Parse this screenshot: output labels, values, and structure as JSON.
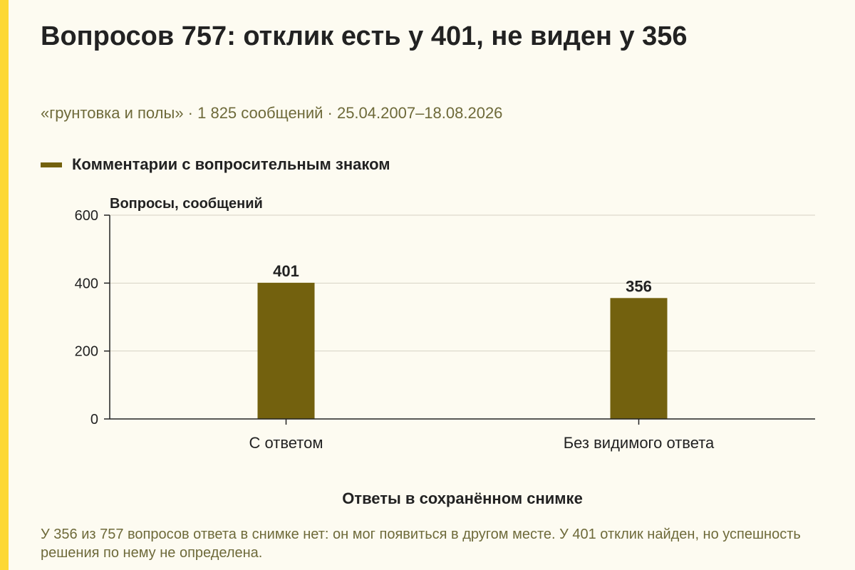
{
  "colors": {
    "accent": "#fdd835",
    "bar": "#73610e",
    "background": "#fdfbf1",
    "muted_text": "#6e6a3a"
  },
  "header": {
    "title": "Вопросов 757: отклик есть у 401, не виден у 356",
    "subtitle": "«грунтовка и полы» · 1 825 сообщений · 25.04.2007–18.08.2026"
  },
  "footnote": "У 356 из 757 вопросов ответа в снимке нет: он мог появиться в другом месте. У 401 отклик найден, но успешность решения по нему не определена.",
  "chart_data": {
    "type": "bar",
    "categories": [
      "С ответом",
      "Без видимого ответа"
    ],
    "series": [
      {
        "name": "Комментарии с вопросительным знаком",
        "values": [
          401,
          356
        ]
      }
    ],
    "ylabel": "Вопросы, сообщений",
    "xlabel": "Ответы в сохранённом снимке",
    "ylim": [
      0,
      600
    ],
    "yticks": [
      0,
      200,
      400,
      600
    ],
    "grid": true,
    "legend": "top-left"
  }
}
